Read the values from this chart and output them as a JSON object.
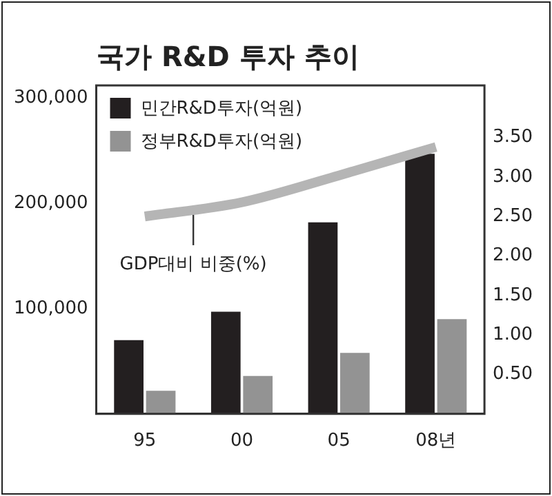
{
  "chart_data": {
    "type": "bar",
    "title": "국가 R&D 투자 추이",
    "categories": [
      "95",
      "00",
      "05",
      "08년"
    ],
    "series": [
      {
        "name": "민간R&D투자(억원)",
        "color": "#231f20",
        "values": [
          70000,
          97000,
          182000,
          247000
        ]
      },
      {
        "name": "정부R&D투자(억원)",
        "color": "#939393",
        "values": [
          22000,
          36000,
          58000,
          90000
        ]
      },
      {
        "name": "GDP대비 비중(%)",
        "type": "line",
        "axis": "y2",
        "color": "#b5b5b5",
        "values": [
          2.5,
          2.68,
          3.02,
          3.38
        ]
      }
    ],
    "ylim": [
      0,
      312000
    ],
    "yticks": [
      {
        "value": 100000,
        "label": "100,000"
      },
      {
        "value": 200000,
        "label": "200,000"
      },
      {
        "value": 300000,
        "label": "300,000"
      }
    ],
    "y2lim": [
      0,
      4.16
    ],
    "y2ticks": [
      {
        "value": 0.5,
        "label": "0.50"
      },
      {
        "value": 1,
        "label": "1.00"
      },
      {
        "value": 1.5,
        "label": "1.50"
      },
      {
        "value": 2,
        "label": "2.00"
      },
      {
        "value": 2.5,
        "label": "2.50"
      },
      {
        "value": 3,
        "label": "3.00"
      },
      {
        "value": 3.5,
        "label": "3.50"
      }
    ],
    "legend": "top left",
    "grid": false,
    "marker": "none"
  }
}
